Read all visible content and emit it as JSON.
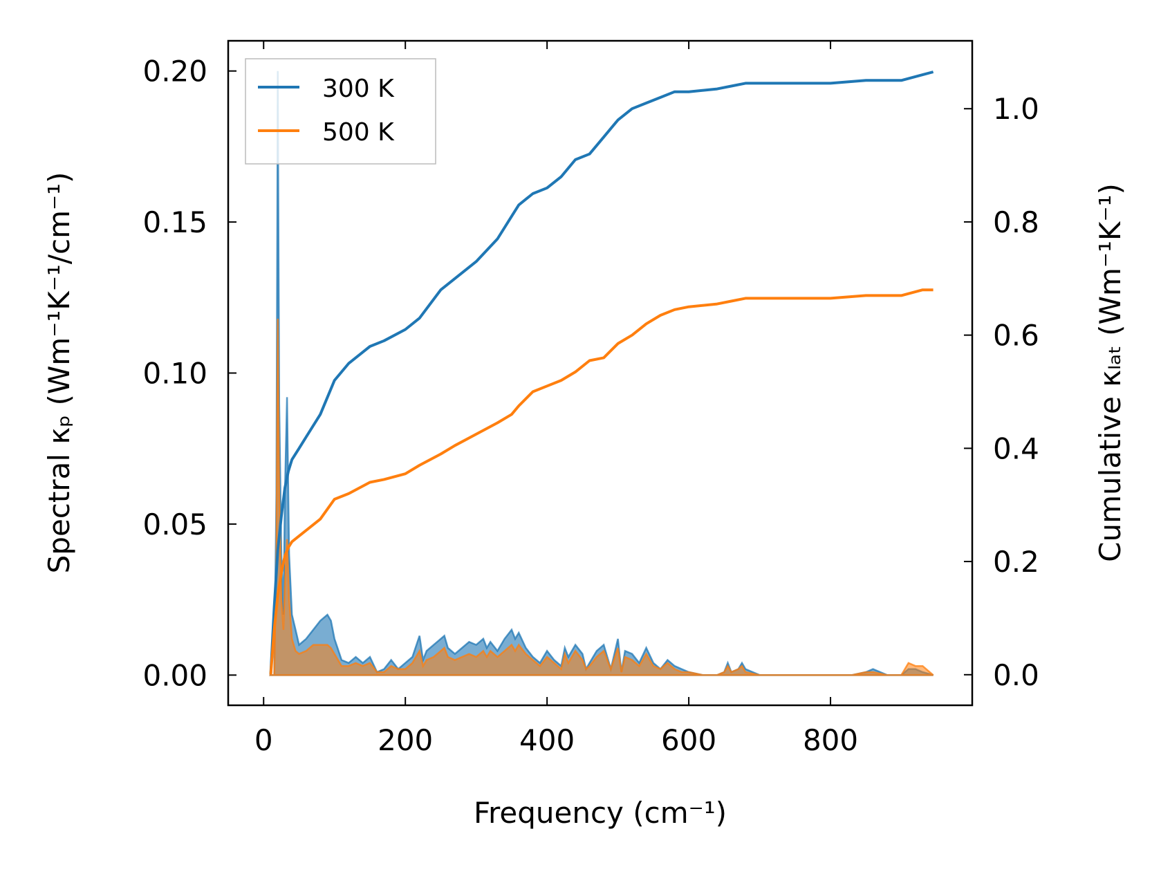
{
  "chart_data": {
    "type": "line",
    "xlabel": "Frequency (cm⁻¹)",
    "ylabel_left": "Spectral κₚ (Wm⁻¹K⁻¹/cm⁻¹)",
    "ylabel_right": "Cumulative κₗₐₜ (Wm⁻¹K⁻¹)",
    "xlim": [
      -50,
      1000
    ],
    "ylim_left": [
      -0.01,
      0.21
    ],
    "ylim_right": [
      -0.054,
      1.12
    ],
    "xticks": [
      0,
      200,
      400,
      600,
      800
    ],
    "yticks_left": [
      0.0,
      0.05,
      0.1,
      0.15,
      0.2
    ],
    "yticks_left_labels": [
      "0.00",
      "0.05",
      "0.10",
      "0.15",
      "0.20"
    ],
    "yticks_right": [
      0.0,
      0.2,
      0.4,
      0.6,
      0.8,
      1.0
    ],
    "yticks_right_labels": [
      "0.0",
      "0.2",
      "0.4",
      "0.6",
      "0.8",
      "1.0"
    ],
    "xtick_labels": [
      "0",
      "200",
      "400",
      "600",
      "800"
    ],
    "legend_position": "top-left",
    "series": [
      {
        "name": "300 K",
        "color": "#1f77b4",
        "cumulative": {
          "x": [
            10,
            15,
            20,
            25,
            30,
            35,
            40,
            50,
            60,
            80,
            100,
            120,
            150,
            170,
            200,
            220,
            250,
            270,
            300,
            330,
            350,
            360,
            380,
            400,
            420,
            440,
            460,
            480,
            500,
            520,
            540,
            560,
            580,
            600,
            640,
            660,
            680,
            700,
            800,
            850,
            900,
            930,
            945
          ],
          "y": [
            0.0,
            0.12,
            0.22,
            0.28,
            0.33,
            0.36,
            0.38,
            0.4,
            0.42,
            0.46,
            0.52,
            0.55,
            0.58,
            0.59,
            0.61,
            0.63,
            0.68,
            0.7,
            0.73,
            0.77,
            0.81,
            0.83,
            0.85,
            0.86,
            0.88,
            0.91,
            0.92,
            0.95,
            0.98,
            1.0,
            1.01,
            1.02,
            1.03,
            1.03,
            1.035,
            1.04,
            1.045,
            1.045,
            1.045,
            1.05,
            1.05,
            1.06,
            1.065
          ]
        },
        "spectral": {
          "x": [
            10,
            15,
            18,
            20,
            22,
            25,
            28,
            30,
            33,
            36,
            40,
            45,
            50,
            60,
            70,
            80,
            90,
            95,
            100,
            110,
            120,
            130,
            140,
            150,
            160,
            170,
            180,
            190,
            200,
            210,
            220,
            225,
            230,
            240,
            250,
            255,
            260,
            270,
            280,
            290,
            300,
            310,
            315,
            320,
            330,
            340,
            350,
            355,
            360,
            370,
            380,
            390,
            400,
            410,
            420,
            425,
            430,
            440,
            450,
            455,
            460,
            470,
            480,
            490,
            500,
            505,
            510,
            520,
            530,
            540,
            550,
            560,
            570,
            580,
            590,
            600,
            620,
            640,
            650,
            655,
            660,
            670,
            675,
            680,
            700,
            750,
            800,
            830,
            850,
            860,
            880,
            900,
            910,
            920,
            930,
            945
          ],
          "y": [
            0.0,
            0.0,
            0.06,
            0.2,
            0.09,
            0.04,
            0.02,
            0.06,
            0.092,
            0.04,
            0.02,
            0.015,
            0.01,
            0.012,
            0.015,
            0.018,
            0.02,
            0.018,
            0.012,
            0.005,
            0.004,
            0.006,
            0.004,
            0.006,
            0.001,
            0.002,
            0.005,
            0.002,
            0.004,
            0.006,
            0.013,
            0.005,
            0.008,
            0.01,
            0.012,
            0.013,
            0.009,
            0.007,
            0.009,
            0.011,
            0.01,
            0.012,
            0.009,
            0.011,
            0.008,
            0.012,
            0.015,
            0.012,
            0.014,
            0.009,
            0.006,
            0.004,
            0.008,
            0.005,
            0.003,
            0.009,
            0.006,
            0.01,
            0.007,
            0.002,
            0.004,
            0.008,
            0.01,
            0.002,
            0.012,
            0.001,
            0.008,
            0.007,
            0.004,
            0.009,
            0.004,
            0.002,
            0.005,
            0.003,
            0.002,
            0.001,
            0.0,
            0.0,
            0.001,
            0.004,
            0.001,
            0.002,
            0.004,
            0.002,
            0.0,
            0.0,
            0.0,
            0.0,
            0.001,
            0.002,
            0.0,
            0.0,
            0.002,
            0.002,
            0.001,
            0.0
          ]
        }
      },
      {
        "name": "500 K",
        "color": "#ff7f0e",
        "cumulative": {
          "x": [
            10,
            15,
            20,
            25,
            30,
            35,
            40,
            50,
            60,
            80,
            100,
            120,
            150,
            170,
            200,
            220,
            250,
            270,
            300,
            330,
            350,
            360,
            380,
            400,
            420,
            440,
            460,
            480,
            500,
            520,
            540,
            560,
            580,
            600,
            640,
            660,
            680,
            700,
            800,
            850,
            900,
            930,
            945
          ],
          "y": [
            0.0,
            0.08,
            0.14,
            0.18,
            0.21,
            0.225,
            0.235,
            0.245,
            0.255,
            0.275,
            0.31,
            0.32,
            0.34,
            0.345,
            0.355,
            0.37,
            0.39,
            0.405,
            0.425,
            0.445,
            0.46,
            0.475,
            0.5,
            0.51,
            0.52,
            0.535,
            0.555,
            0.56,
            0.585,
            0.6,
            0.62,
            0.635,
            0.645,
            0.65,
            0.655,
            0.66,
            0.665,
            0.665,
            0.665,
            0.67,
            0.67,
            0.68,
            0.68
          ]
        },
        "spectral": {
          "x": [
            10,
            15,
            18,
            20,
            22,
            25,
            28,
            30,
            33,
            36,
            40,
            45,
            50,
            60,
            70,
            80,
            90,
            95,
            100,
            110,
            120,
            130,
            140,
            150,
            160,
            170,
            180,
            190,
            200,
            210,
            220,
            225,
            230,
            240,
            250,
            255,
            260,
            270,
            280,
            290,
            300,
            310,
            315,
            320,
            330,
            340,
            350,
            355,
            360,
            370,
            380,
            390,
            400,
            410,
            420,
            425,
            430,
            440,
            450,
            455,
            460,
            470,
            480,
            490,
            500,
            505,
            510,
            520,
            530,
            540,
            550,
            560,
            570,
            580,
            590,
            600,
            620,
            640,
            650,
            655,
            660,
            670,
            675,
            680,
            700,
            750,
            800,
            830,
            850,
            860,
            880,
            900,
            910,
            920,
            930,
            945
          ],
          "y": [
            0.0,
            0.0,
            0.04,
            0.118,
            0.06,
            0.025,
            0.015,
            0.03,
            0.045,
            0.025,
            0.012,
            0.008,
            0.007,
            0.008,
            0.01,
            0.01,
            0.01,
            0.009,
            0.007,
            0.003,
            0.003,
            0.004,
            0.003,
            0.004,
            0.001,
            0.001,
            0.003,
            0.002,
            0.002,
            0.004,
            0.008,
            0.003,
            0.005,
            0.006,
            0.008,
            0.009,
            0.006,
            0.005,
            0.006,
            0.007,
            0.006,
            0.008,
            0.006,
            0.008,
            0.006,
            0.008,
            0.01,
            0.008,
            0.01,
            0.007,
            0.005,
            0.003,
            0.006,
            0.004,
            0.002,
            0.007,
            0.004,
            0.008,
            0.005,
            0.002,
            0.003,
            0.006,
            0.008,
            0.002,
            0.009,
            0.001,
            0.006,
            0.005,
            0.003,
            0.007,
            0.003,
            0.002,
            0.004,
            0.002,
            0.001,
            0.001,
            0.0,
            0.0,
            0.001,
            0.003,
            0.001,
            0.002,
            0.003,
            0.001,
            0.0,
            0.0,
            0.0,
            0.0,
            0.001,
            0.001,
            0.0,
            0.0,
            0.004,
            0.003,
            0.003,
            0.0
          ]
        }
      }
    ]
  }
}
